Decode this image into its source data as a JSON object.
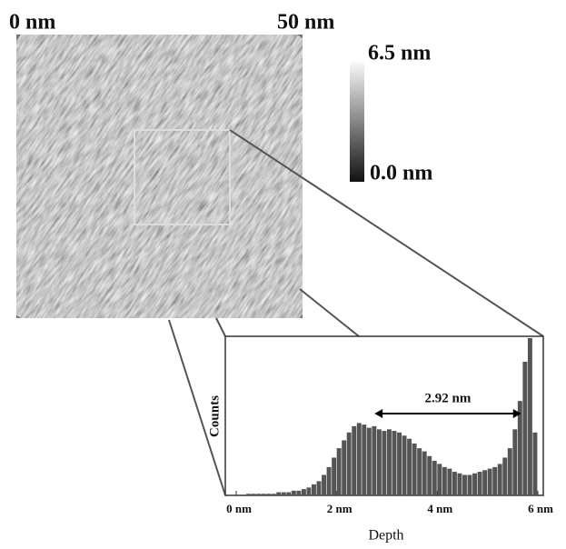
{
  "image": {
    "left_label": "0 nm",
    "right_label": "50 nm"
  },
  "colorbar": {
    "max_label": "6.5 nm",
    "min_label": "0.0 nm"
  },
  "chart_data": {
    "type": "histogram",
    "xlabel": "Depth",
    "ylabel": "Counts",
    "bins": [
      0.0,
      0.1,
      0.2,
      0.3,
      0.4,
      0.5,
      0.6,
      0.7,
      0.8,
      0.9,
      1.0,
      1.1,
      1.2,
      1.3,
      1.4,
      1.5,
      1.6,
      1.7,
      1.8,
      1.9,
      2.0,
      2.1,
      2.2,
      2.3,
      2.4,
      2.5,
      2.6,
      2.7,
      2.8,
      2.9,
      3.0,
      3.1,
      3.2,
      3.3,
      3.4,
      3.5,
      3.6,
      3.7,
      3.8,
      3.9,
      4.0,
      4.1,
      4.2,
      4.3,
      4.4,
      4.5,
      4.6,
      4.7,
      4.8,
      4.9,
      5.0,
      5.1,
      5.2,
      5.3,
      5.4,
      5.5,
      5.6,
      5.7,
      5.8,
      5.9,
      6.0
    ],
    "values": [
      0,
      0,
      1,
      1,
      1,
      1,
      1,
      1,
      2,
      2,
      2,
      3,
      3,
      4,
      5,
      7,
      9,
      13,
      18,
      24,
      30,
      35,
      40,
      44,
      46,
      45,
      43,
      44,
      42,
      41,
      42,
      41,
      40,
      38,
      36,
      33,
      30,
      28,
      25,
      22,
      20,
      18,
      17,
      15,
      14,
      13,
      13,
      14,
      15,
      16,
      17,
      18,
      20,
      24,
      30,
      42,
      60,
      85,
      100,
      40
    ],
    "color": "#555555",
    "xlim": [
      0,
      6
    ],
    "ylim": [
      0,
      100
    ],
    "xticks": [
      {
        "value": 0,
        "label": "0 nm"
      },
      {
        "value": 2,
        "label": "2 nm"
      },
      {
        "value": 4,
        "label": "4 nm"
      },
      {
        "value": 6,
        "label": "6 nm"
      }
    ],
    "annotation": "2.92 nm",
    "arrow": [
      2.75,
      5.67
    ]
  }
}
